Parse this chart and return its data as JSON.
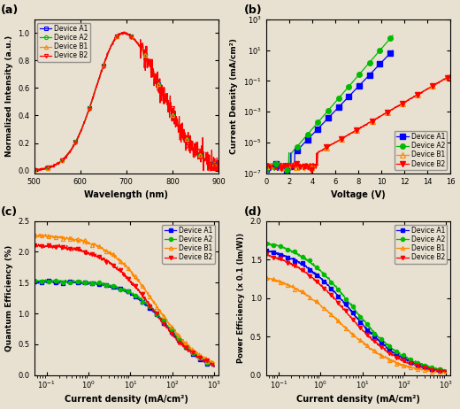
{
  "title_a": "(a)",
  "title_b": "(b)",
  "title_c": "(c)",
  "title_d": "(d)",
  "colors": {
    "A1": "#0000FF",
    "A2": "#00BB00",
    "B1": "#FF8800",
    "B2": "#FF0000"
  },
  "bg_color": "#E8E0D0",
  "panel_a": {
    "xlabel": "Wavelength (nm)",
    "ylabel": "Normalized Intensity (a.u.)",
    "xlim": [
      500,
      900
    ],
    "ylim": [
      -0.02,
      1.1
    ],
    "xticks": [
      500,
      600,
      700,
      800,
      900
    ],
    "yticks": [
      0.0,
      0.2,
      0.4,
      0.6,
      0.8,
      1.0
    ]
  },
  "panel_b": {
    "xlabel": "Voltage (V)",
    "ylabel": "Current Density (mA/cm²)",
    "xlim": [
      0,
      16
    ],
    "ylim_log": [
      -7,
      3
    ],
    "xticks": [
      0,
      2,
      4,
      6,
      8,
      10,
      12,
      14,
      16
    ]
  },
  "panel_c": {
    "xlabel": "Current density (mA/cm²)",
    "ylabel": "Quantum Efficiency (%)",
    "xlim_log": [
      -1.3,
      3.1
    ],
    "ylim": [
      0.0,
      2.5
    ],
    "yticks": [
      0.0,
      0.5,
      1.0,
      1.5,
      2.0,
      2.5
    ]
  },
  "panel_d": {
    "xlabel": "Current density (mA/cm²)",
    "ylabel": "Power Efficiency (x 0.1 (lm/W))",
    "xlim_log": [
      -1.3,
      3.1
    ],
    "ylim": [
      0.0,
      2.0
    ],
    "yticks": [
      0.0,
      0.5,
      1.0,
      1.5,
      2.0
    ]
  }
}
